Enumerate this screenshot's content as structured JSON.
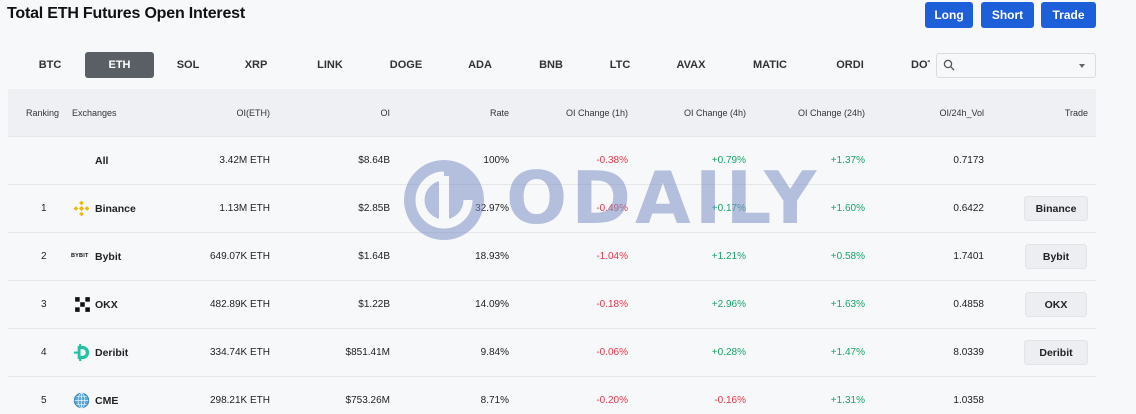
{
  "title": "Total ETH Futures Open Interest",
  "header_buttons": {
    "long": "Long",
    "short": "Short",
    "trade": "Trade"
  },
  "colors": {
    "accent": "#1d5fd9",
    "negative": "#e8354a",
    "positive": "#1aa16a"
  },
  "coins": [
    "BTC",
    "ETH",
    "SOL",
    "XRP",
    "LINK",
    "DOGE",
    "ADA",
    "BNB",
    "LTC",
    "AVAX",
    "MATIC",
    "ORDI",
    "DOT"
  ],
  "active_coin": "ETH",
  "search": {
    "placeholder": "",
    "icon": "search-icon"
  },
  "columns": [
    "Ranking",
    "Exchanges",
    "OI(ETH)",
    "OI",
    "Rate",
    "OI Change (1h)",
    "OI Change (4h)",
    "OI Change (24h)",
    "OI/24h_Vol",
    "Trade"
  ],
  "rows": [
    {
      "rank": "",
      "exchange": "All",
      "oi_eth": "3.42M ETH",
      "oi": "$8.64B",
      "rate": "100%",
      "ch1h": "-0.38%",
      "ch4h": "+0.79%",
      "ch24h": "+1.37%",
      "vol": "0.7173",
      "trade": ""
    },
    {
      "rank": "1",
      "exchange": "Binance",
      "icon": "binance-icon",
      "oi_eth": "1.13M ETH",
      "oi": "$2.85B",
      "rate": "32.97%",
      "ch1h": "-0.49%",
      "ch4h": "+0.17%",
      "ch24h": "+1.60%",
      "vol": "0.6422",
      "trade": "Binance"
    },
    {
      "rank": "2",
      "exchange": "Bybit",
      "icon": "bybit-icon",
      "icon_text": "BYBIT",
      "oi_eth": "649.07K ETH",
      "oi": "$1.64B",
      "rate": "18.93%",
      "ch1h": "-1.04%",
      "ch4h": "+1.21%",
      "ch24h": "+0.58%",
      "vol": "1.7401",
      "trade": "Bybit"
    },
    {
      "rank": "3",
      "exchange": "OKX",
      "icon": "okx-icon",
      "oi_eth": "482.89K ETH",
      "oi": "$1.22B",
      "rate": "14.09%",
      "ch1h": "-0.18%",
      "ch4h": "+2.96%",
      "ch24h": "+1.63%",
      "vol": "0.4858",
      "trade": "OKX"
    },
    {
      "rank": "4",
      "exchange": "Deribit",
      "icon": "deribit-icon",
      "oi_eth": "334.74K ETH",
      "oi": "$851.41M",
      "rate": "9.84%",
      "ch1h": "-0.06%",
      "ch4h": "+0.28%",
      "ch24h": "+1.47%",
      "vol": "8.0339",
      "trade": "Deribit"
    },
    {
      "rank": "5",
      "exchange": "CME",
      "icon": "cme-icon",
      "oi_eth": "298.21K ETH",
      "oi": "$753.26M",
      "rate": "8.71%",
      "ch1h": "-0.20%",
      "ch4h": "-0.16%",
      "ch24h": "+1.31%",
      "vol": "1.0358",
      "trade": ""
    }
  ],
  "watermark": {
    "text": "ODAILY"
  }
}
